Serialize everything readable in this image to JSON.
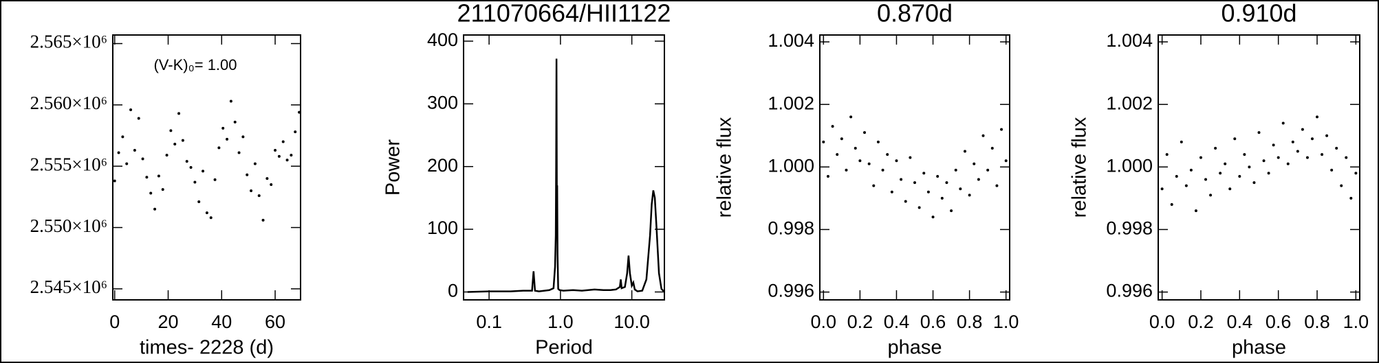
{
  "chart_data": [
    {
      "type": "scatter",
      "xlabel": "times- 2228 (d)",
      "annotation": "(V-K)₀= 1.00",
      "color": "#000000",
      "xlim": [
        -0.7,
        69.5
      ],
      "xticks": [
        0,
        20,
        40,
        60
      ],
      "ylim": [
        2544100,
        2565700
      ],
      "yticks": [
        {
          "value": 2545000,
          "label": "2.545×10⁶"
        },
        {
          "value": 2550000,
          "label": "2.550×10⁶"
        },
        {
          "value": 2555000,
          "label": "2.555×10⁶"
        },
        {
          "value": 2560000,
          "label": "2.560×10⁶"
        },
        {
          "value": 2565000,
          "label": "2.565×10⁶"
        }
      ],
      "x": [
        0,
        1.5,
        3,
        4.5,
        6,
        7.5,
        9,
        10.5,
        12,
        13.5,
        15,
        16.5,
        18,
        19.5,
        21,
        22.5,
        24,
        25.5,
        27,
        28.5,
        30,
        31.5,
        33,
        34.5,
        36,
        37.5,
        39,
        40.5,
        42,
        43.5,
        45,
        46.5,
        48,
        49.5,
        51,
        52.5,
        54,
        55.5,
        57,
        58.5,
        60,
        61.5,
        63,
        64.5,
        66,
        67.5,
        69
      ],
      "values": [
        2553800,
        2556100,
        2557400,
        2555200,
        2559600,
        2556300,
        2558900,
        2555600,
        2554100,
        2552800,
        2551500,
        2554200,
        2553100,
        2555900,
        2557900,
        2556800,
        2559300,
        2557100,
        2555400,
        2554900,
        2553700,
        2552100,
        2554600,
        2551200,
        2550800,
        2553900,
        2556500,
        2558100,
        2557200,
        2560300,
        2558600,
        2556100,
        2557400,
        2554300,
        2553000,
        2555200,
        2552600,
        2550600,
        2554000,
        2553500,
        2556300,
        2555800,
        2557000,
        2555500,
        2555900,
        2557800,
        2559400
      ]
    },
    {
      "type": "line",
      "title": "211070664/HII1122",
      "xlabel": "Period",
      "ylabel": "Power",
      "color": "#000000",
      "xscale": "log",
      "xlim": [
        0.0439,
        28.6
      ],
      "xticks": [
        0.1,
        {
          "value": 1,
          "label": "1.0"
        },
        {
          "value": 10,
          "label": "10.0"
        }
      ],
      "ylim": [
        -12.6,
        409.8
      ],
      "yticks": [
        0,
        100,
        200,
        300,
        400
      ],
      "x": [
        0.05,
        0.1,
        0.2,
        0.3,
        0.4,
        0.42,
        0.44,
        0.5,
        0.7,
        0.8,
        0.84,
        0.86,
        0.87,
        0.88,
        0.89,
        0.9,
        0.91,
        0.93,
        0.97,
        1.1,
        1.5,
        2,
        3,
        4,
        5,
        6,
        6.8,
        7,
        7.2,
        8,
        8.6,
        9,
        9.4,
        10,
        10.5,
        11,
        12,
        14,
        16,
        18,
        19,
        20,
        21,
        22,
        24,
        26,
        28
      ],
      "values": [
        0,
        1,
        1,
        2,
        2,
        33,
        2,
        1,
        3,
        6,
        40,
        90,
        200,
        372,
        160,
        170,
        60,
        5,
        3,
        2,
        3,
        2,
        4,
        3,
        3,
        4,
        8,
        20,
        6,
        8,
        30,
        58,
        30,
        10,
        15,
        4,
        1,
        2,
        20,
        90,
        140,
        162,
        150,
        110,
        30,
        5,
        1
      ]
    },
    {
      "type": "scatter",
      "title": "0.870d",
      "xlabel": "phase",
      "ylabel": "relative flux",
      "color": "#000000",
      "xlim": [
        -0.02,
        1.02
      ],
      "xticks": [
        {
          "value": 0,
          "label": "0.0"
        },
        0.2,
        0.4,
        0.6,
        0.8,
        {
          "value": 1,
          "label": "1.0"
        }
      ],
      "ylim": [
        0.99575,
        1.00422
      ],
      "yticks": [
        0.996,
        0.998,
        {
          "value": 1,
          "label": "1.000"
        },
        1.002,
        1.004
      ],
      "x": [
        0,
        0.025,
        0.05,
        0.075,
        0.1,
        0.125,
        0.15,
        0.175,
        0.2,
        0.225,
        0.25,
        0.275,
        0.3,
        0.325,
        0.35,
        0.375,
        0.4,
        0.425,
        0.45,
        0.475,
        0.5,
        0.525,
        0.55,
        0.575,
        0.6,
        0.625,
        0.65,
        0.675,
        0.7,
        0.725,
        0.75,
        0.775,
        0.8,
        0.825,
        0.85,
        0.875,
        0.9,
        0.925,
        0.95,
        0.975,
        1
      ],
      "values": [
        1.0008,
        0.9997,
        1.0013,
        1.0004,
        1.0009,
        0.9999,
        1.0016,
        1.0006,
        1.0002,
        1.0011,
        1.0001,
        0.9994,
        1.0008,
        0.9999,
        1.0004,
        0.9992,
        1.0002,
        0.9996,
        0.9989,
        1.0003,
        0.9995,
        0.9987,
        0.9998,
        0.9992,
        0.9984,
        0.9997,
        0.999,
        0.9995,
        0.9986,
        0.9999,
        0.9993,
        1.0005,
        0.9991,
        1.0001,
        0.9996,
        1.001,
        0.9999,
        1.0006,
        0.9994,
        1.0012,
        1.0002
      ]
    },
    {
      "type": "scatter",
      "title": "0.910d",
      "xlabel": "phase",
      "ylabel": "relative flux",
      "color": "#000000",
      "xlim": [
        -0.02,
        1.02
      ],
      "xticks": [
        {
          "value": 0,
          "label": "0.0"
        },
        0.2,
        0.4,
        0.6,
        0.8,
        {
          "value": 1,
          "label": "1.0"
        }
      ],
      "ylim": [
        0.99575,
        1.00422
      ],
      "yticks": [
        0.996,
        0.998,
        {
          "value": 1,
          "label": "1.000"
        },
        1.002,
        1.004
      ],
      "x": [
        0,
        0.025,
        0.05,
        0.075,
        0.1,
        0.125,
        0.15,
        0.175,
        0.2,
        0.225,
        0.25,
        0.275,
        0.3,
        0.325,
        0.35,
        0.375,
        0.4,
        0.425,
        0.45,
        0.475,
        0.5,
        0.525,
        0.55,
        0.575,
        0.6,
        0.625,
        0.65,
        0.675,
        0.7,
        0.725,
        0.75,
        0.775,
        0.8,
        0.825,
        0.85,
        0.875,
        0.9,
        0.925,
        0.95,
        0.975,
        1
      ],
      "values": [
        0.9993,
        1.0004,
        0.9988,
        0.9997,
        1.0008,
        0.9994,
        0.9999,
        0.9986,
        1.0003,
        0.9996,
        0.9991,
        1.0006,
        0.9998,
        1.0001,
        0.9993,
        1.0009,
        0.9997,
        1.0004,
        1,
        0.9995,
        1.0011,
        1.0002,
        0.9998,
        1.0007,
        1.0003,
        1.0014,
        1.0001,
        1.0008,
        1.0005,
        1.0012,
        1.0003,
        1.0009,
        1.0016,
        1.0004,
        1.001,
        0.9999,
        1.0006,
        0.9994,
        1.0003,
        0.999,
        0.9998
      ]
    }
  ]
}
